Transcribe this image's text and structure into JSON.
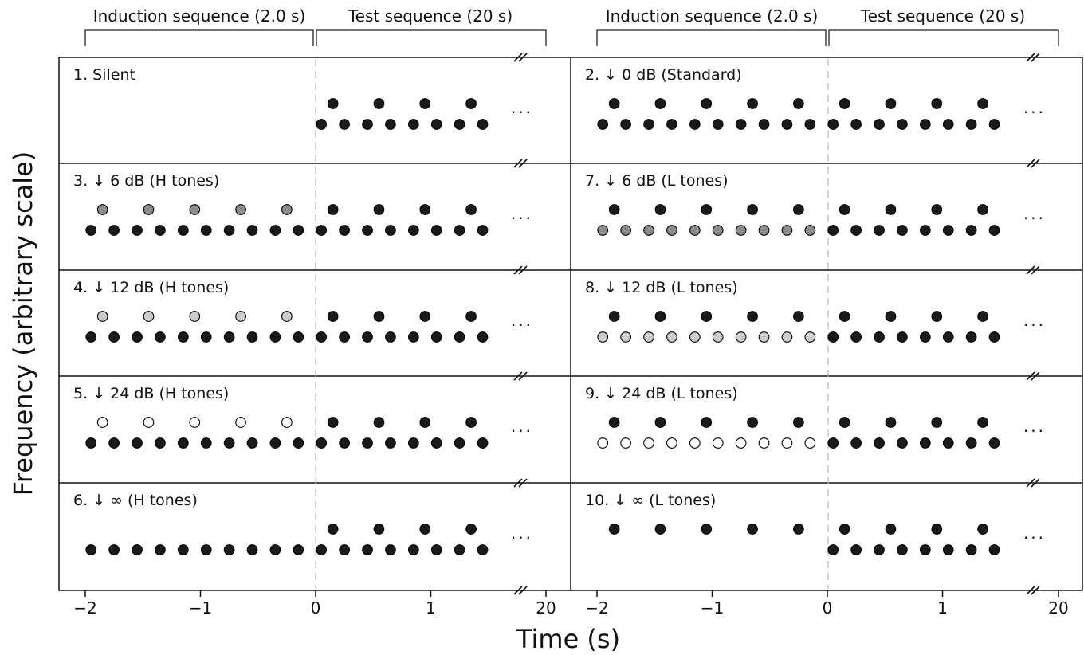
{
  "header": {
    "induction_label": "Induction sequence (2.0 s)",
    "test_label": "Test sequence (20 s)"
  },
  "axes": {
    "xlabel": "Time (s)",
    "ylabel": "Frequency (arbitrary scale)",
    "xticks": [
      {
        "value": -2,
        "label": "−2"
      },
      {
        "value": -1,
        "label": "−1"
      },
      {
        "value": 0,
        "label": "0"
      },
      {
        "value": 1,
        "label": "1"
      },
      {
        "value": 20,
        "label": "20"
      }
    ],
    "ellipsis": "..."
  },
  "colors": {
    "full": "#1a1a1a",
    "minus6": "#8c8c8c",
    "minus12": "#cccccc",
    "minus24": "#ffffff",
    "outline": "#000000",
    "divider": "#bbbbbb"
  },
  "panels": [
    {
      "label": "1. Silent",
      "column": "left",
      "row": 1,
      "attenuated": "none",
      "level": "silent"
    },
    {
      "label": "2. ↓ 0 dB (Standard)",
      "column": "right",
      "row": 1,
      "attenuated": "both",
      "level": "full"
    },
    {
      "label": "3. ↓ 6 dB (H tones)",
      "column": "left",
      "row": 2,
      "attenuated": "H",
      "level": "minus6"
    },
    {
      "label": "7. ↓ 6 dB (L tones)",
      "column": "right",
      "row": 2,
      "attenuated": "L",
      "level": "minus6"
    },
    {
      "label": "4. ↓ 12 dB (H tones)",
      "column": "left",
      "row": 3,
      "attenuated": "H",
      "level": "minus12"
    },
    {
      "label": "8. ↓ 12 dB (L tones)",
      "column": "right",
      "row": 3,
      "attenuated": "L",
      "level": "minus12"
    },
    {
      "label": "5. ↓ 24 dB (H tones)",
      "column": "left",
      "row": 4,
      "attenuated": "H",
      "level": "minus24"
    },
    {
      "label": "9. ↓ 24 dB (L tones)",
      "column": "right",
      "row": 4,
      "attenuated": "L",
      "level": "minus24"
    },
    {
      "label": "6. ↓ ∞ (H tones)",
      "column": "left",
      "row": 5,
      "attenuated": "H",
      "level": "silent"
    },
    {
      "label": "10. ↓ ∞ (L tones)",
      "column": "right",
      "row": 5,
      "attenuated": "L",
      "level": "silent"
    }
  ],
  "sequence": {
    "induction_L_times": [
      -1.95,
      -1.75,
      -1.55,
      -1.35,
      -1.15,
      -0.95,
      -0.75,
      -0.55,
      -0.35,
      -0.15
    ],
    "induction_H_times": [
      -1.85,
      -1.45,
      -1.05,
      -0.65,
      -0.25
    ],
    "test_L_times": [
      0.05,
      0.25,
      0.45,
      0.65,
      0.85,
      1.05,
      1.25,
      1.45
    ],
    "test_H_times": [
      0.15,
      0.55,
      0.95,
      1.35
    ]
  }
}
